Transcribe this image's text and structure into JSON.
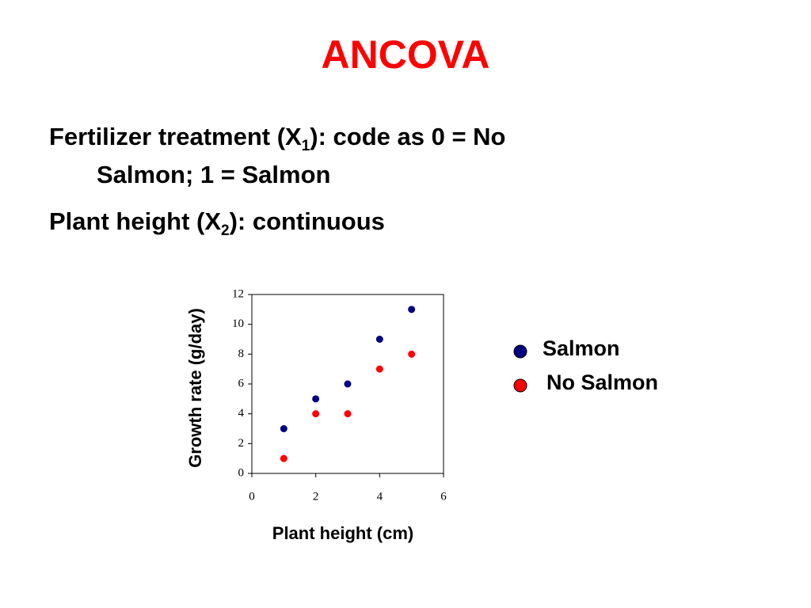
{
  "title": "ANCOVA",
  "bullets": [
    {
      "parts": [
        "Fertilizer treatment (X",
        "1",
        "): code as 0 = No",
        "Salmon; 1 = Salmon"
      ]
    },
    {
      "parts": [
        "Plant height (X",
        "2",
        "): continuous"
      ]
    }
  ],
  "chart_data": {
    "type": "scatter",
    "x_label": "Plant height (cm)",
    "y_label": "Growth rate (g/day)",
    "x": [
      1,
      2,
      3,
      4,
      5
    ],
    "series": [
      {
        "name": "Salmon",
        "color": "#000080",
        "values": [
          3,
          5,
          6,
          9,
          11
        ]
      },
      {
        "name": "No Salmon",
        "color": "#ff0000",
        "values": [
          1,
          4,
          4,
          7,
          8
        ]
      }
    ],
    "xlim": [
      0,
      6
    ],
    "xticks": [
      0,
      2,
      4,
      6
    ],
    "ylim": [
      0,
      12
    ],
    "yticks": [
      0,
      2,
      4,
      6,
      8,
      10,
      12
    ],
    "grid": false
  }
}
